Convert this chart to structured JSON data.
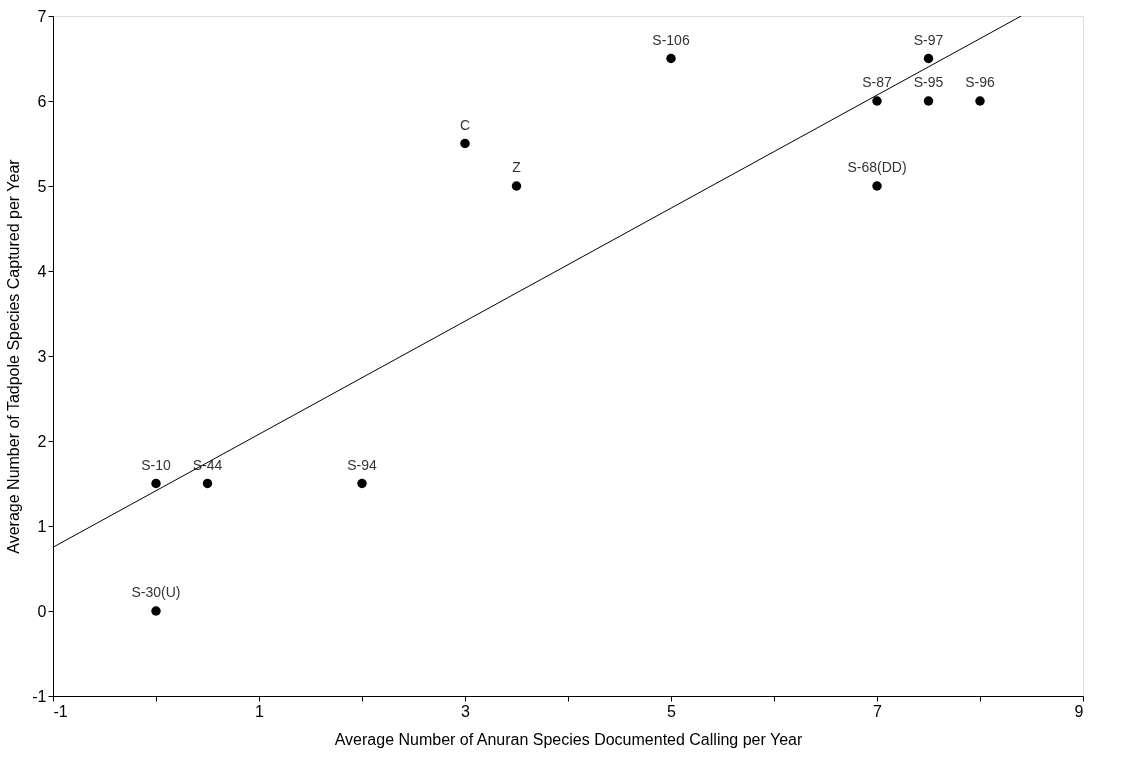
{
  "chart_data": {
    "type": "scatter",
    "xlabel": "Average Number of Anuran Species Documented Calling per Year",
    "ylabel": "Average Number of Tadpole Species Captured per Year",
    "xlim": [
      -1,
      9
    ],
    "xticks": [
      -1,
      {
        "value": 0,
        "label": null
      },
      1,
      {
        "value": 2,
        "label": null
      },
      3,
      {
        "value": 4,
        "label": null
      },
      5,
      {
        "value": 6,
        "label": null
      },
      7,
      {
        "value": 8,
        "label": null
      },
      9
    ],
    "ylim": [
      -1,
      7
    ],
    "yticks": [
      -1,
      0,
      1,
      2,
      3,
      4,
      5,
      6,
      7
    ],
    "grid": false,
    "marker": "circle",
    "series": [
      {
        "type": "scatter",
        "color": "#000000",
        "x": [
          0,
          0.5,
          2,
          0,
          3,
          3.5,
          5,
          7,
          7,
          7.5,
          7.5,
          8
        ],
        "values": [
          1.5,
          1.5,
          1.5,
          0,
          5.5,
          5,
          6.5,
          6,
          5,
          6.5,
          6,
          6
        ],
        "value_labels": [
          "S-10",
          "S-44",
          "S-94",
          "S-30(U)",
          "C",
          "Z",
          "S-106",
          "S-87",
          "S-68(DD)",
          "S-97",
          "S-95",
          "S-96"
        ]
      },
      {
        "type": "line",
        "color": "#000000",
        "marker": "none",
        "line_style": "solid",
        "x": [
          -1,
          8.4
        ],
        "values": [
          0.75,
          7
        ]
      }
    ]
  }
}
